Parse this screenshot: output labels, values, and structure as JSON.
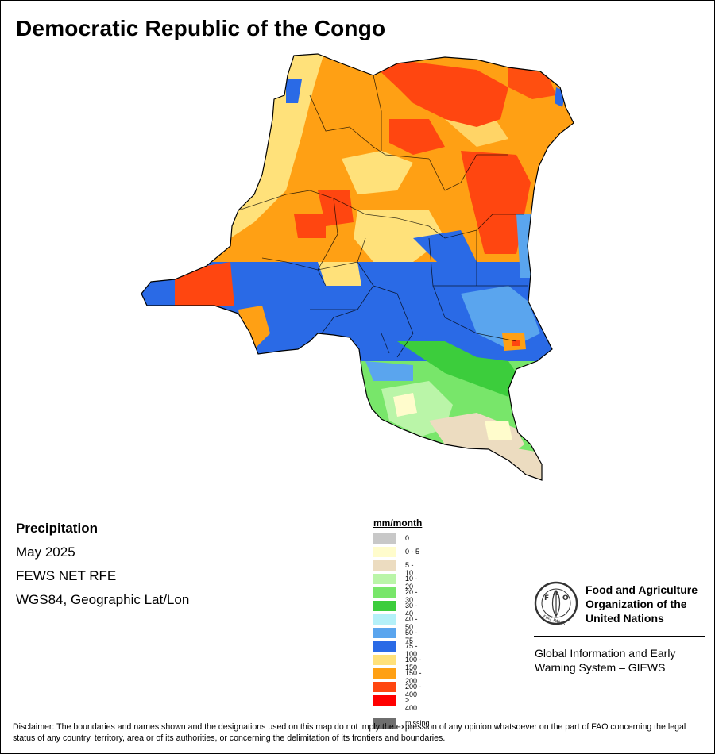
{
  "title": "Democratic Republic of the Congo",
  "info": {
    "variable": "Precipitation",
    "period": "May 2025",
    "source": "FEWS NET RFE",
    "projection": "WGS84, Geographic Lat/Lon"
  },
  "legend": {
    "unit": "mm/month",
    "classes": [
      {
        "label": "0",
        "color": "#c8c8c8"
      },
      {
        "label": "0 - 5",
        "color": "#fffccc"
      },
      {
        "label": "5 - 10",
        "color": "#ecdcc0"
      },
      {
        "label": "10 - 20",
        "color": "#baf5a8"
      },
      {
        "label": "20 - 30",
        "color": "#78e66a"
      },
      {
        "label": "30 - 40",
        "color": "#3ccd3c"
      },
      {
        "label": "40 - 50",
        "color": "#b4f0f8"
      },
      {
        "label": "50 - 75",
        "color": "#5aa5ee"
      },
      {
        "label": "75 - 100",
        "color": "#2a6ae6"
      },
      {
        "label": "100 - 150",
        "color": "#ffe17a"
      },
      {
        "label": "150 - 200",
        "color": "#ffa014"
      },
      {
        "label": "200 - 400",
        "color": "#ff4610"
      },
      {
        "label": "> 400",
        "color": "#ff0000"
      }
    ],
    "missing": {
      "label": "missing",
      "color": "#6e6e6e"
    }
  },
  "organization": {
    "line1": "Food and Agriculture",
    "line2": "Organization of the",
    "line3": "United Nations",
    "logo_text": "FAO",
    "logo_motto": "FIAT PANIS"
  },
  "system": {
    "line1": "Global Information and Early",
    "line2": "Warning System – GIEWS"
  },
  "disclaimer": "Disclaimer: The boundaries and names shown and the designations used on this map do not imply the expression of any opinion whatsoever on the part of FAO concerning the legal status of any country, territory, area or of its authorities, or concerning the delimitation of its frontiers and boundaries."
}
